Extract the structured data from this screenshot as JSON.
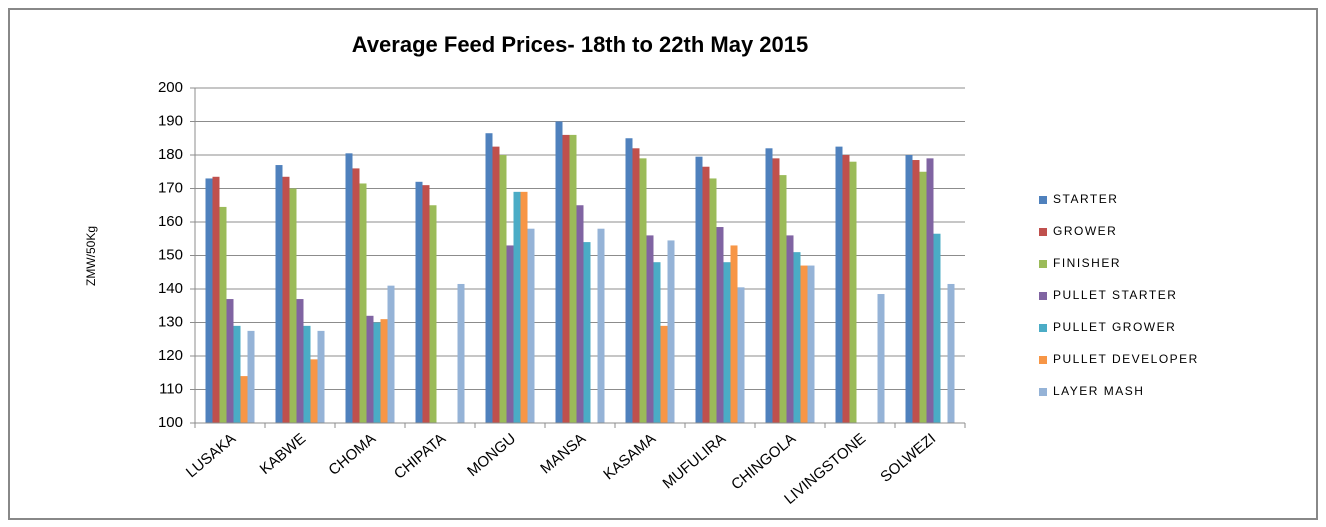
{
  "chart_data": {
    "type": "bar",
    "title": "Average Feed Prices- 18th to 22th May 2015",
    "y_label": "ZMW/50Kg",
    "categories": [
      "LUSAKA",
      "KABWE",
      "CHOMA",
      "CHIPATA",
      "MONGU",
      "MANSA",
      "KASAMA",
      "MUFULIRA",
      "CHINGOLA",
      "LIVINGSTONE",
      "SOLWEZI"
    ],
    "series": [
      {
        "name": "STARTER",
        "color": "#4f81bd",
        "values": [
          173,
          177,
          180.5,
          172,
          186.5,
          190,
          185,
          179.5,
          182,
          182.5,
          180
        ]
      },
      {
        "name": "GROWER",
        "color": "#c0504d",
        "values": [
          173.5,
          173.5,
          176,
          171,
          182.5,
          186,
          182,
          176.5,
          179,
          180,
          178.5
        ]
      },
      {
        "name": "FINISHER",
        "color": "#9bbb59",
        "values": [
          164.5,
          170,
          171.5,
          165,
          180,
          186,
          179,
          173,
          174,
          178,
          175
        ]
      },
      {
        "name": "PULLET STARTER",
        "color": "#8064a2",
        "values": [
          137,
          137,
          132,
          null,
          153,
          165,
          156,
          158.5,
          156,
          null,
          179
        ]
      },
      {
        "name": "PULLET GROWER",
        "color": "#4bacc6",
        "values": [
          129,
          129,
          130,
          null,
          169,
          154,
          148,
          148,
          151,
          null,
          156.5
        ]
      },
      {
        "name": "PULLET DEVELOPER",
        "color": "#f79646",
        "values": [
          114,
          119,
          131,
          null,
          169,
          null,
          129,
          153,
          147,
          null,
          null
        ]
      },
      {
        "name": "LAYER MASH",
        "color": "#95b3d7",
        "values": [
          127.5,
          127.5,
          141,
          141.5,
          158,
          158,
          154.5,
          140.5,
          147,
          138.5,
          141.5
        ]
      }
    ],
    "ylim": [
      100,
      200
    ],
    "yticks": [
      100,
      110,
      120,
      130,
      140,
      150,
      160,
      170,
      180,
      190,
      200
    ],
    "grid": true,
    "legend": "right"
  }
}
